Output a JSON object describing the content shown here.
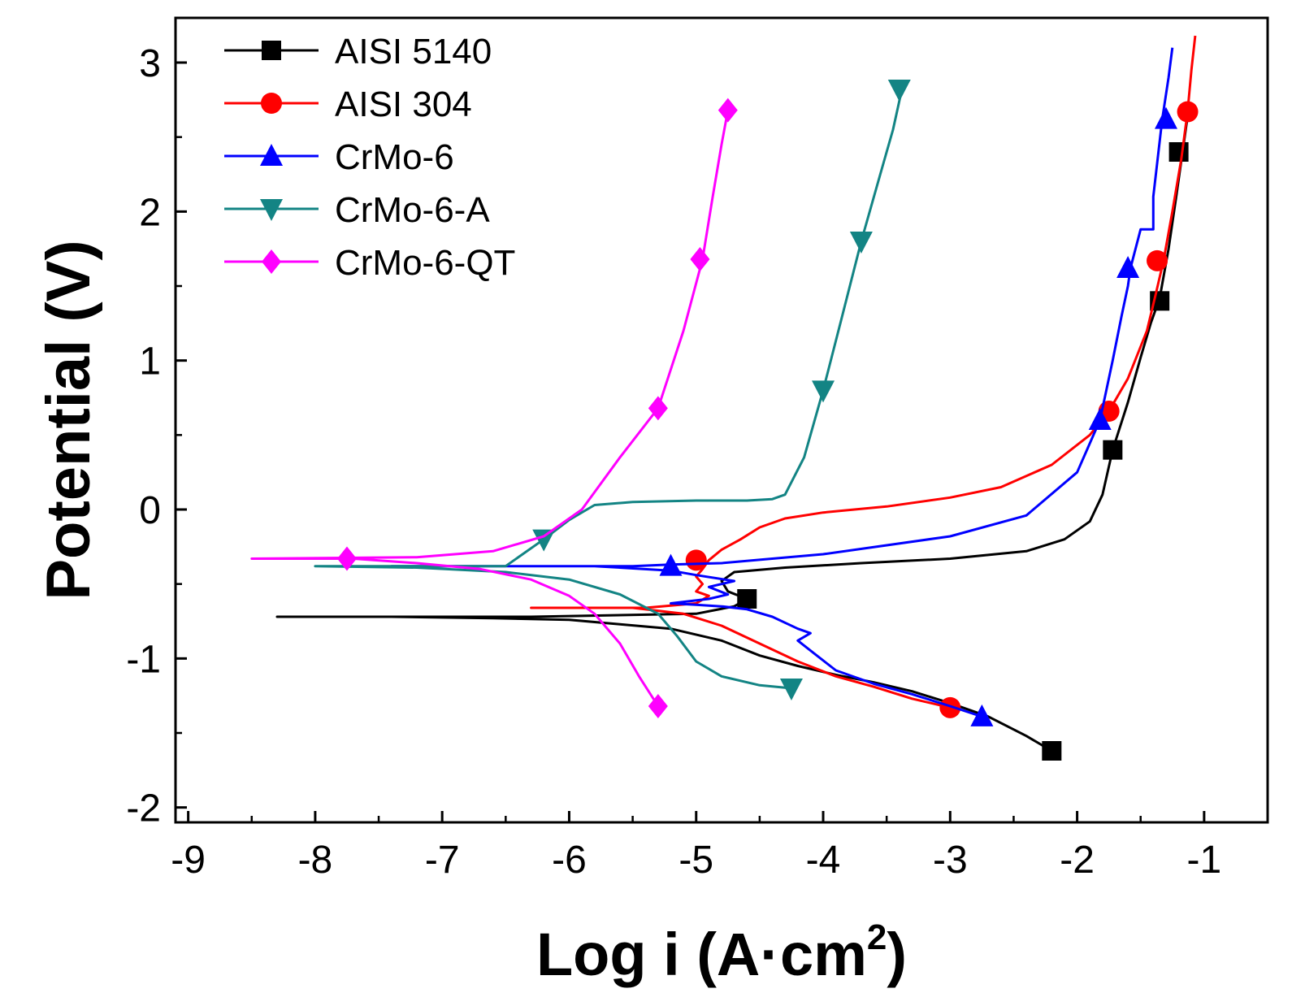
{
  "chart_data": {
    "type": "line",
    "title": "",
    "xlabel": "Log i (A·cm",
    "xlabel_sup": "2",
    "xlabel_close": ")",
    "ylabel": "Potential (V)",
    "xlim": [
      -9.1,
      -0.5
    ],
    "ylim": [
      -2.1,
      3.3
    ],
    "xticks": [
      -9,
      -8,
      -7,
      -6,
      -5,
      -4,
      -3,
      -2,
      -1
    ],
    "xtick_labels": [
      "-9",
      "-8",
      "-7",
      "-6",
      "-5",
      "-4",
      "-3",
      "-2",
      "-1"
    ],
    "yticks": [
      -2,
      -1,
      0,
      1,
      2,
      3
    ],
    "ytick_labels": [
      "-2",
      "-1",
      "0",
      "1",
      "2",
      "3"
    ],
    "legend_position": "top-left",
    "series": [
      {
        "name": "AISI 5140",
        "color": "#000000",
        "marker": "square",
        "x": [
          -2.2,
          -2.4,
          -2.7,
          -3.0,
          -3.3,
          -3.6,
          -3.9,
          -4.2,
          -4.5,
          -4.8,
          -5.2,
          -5.6,
          -6.0,
          -6.6,
          -7.4,
          -8.3,
          -6.3,
          -5.0,
          -4.7,
          -4.6,
          -4.75,
          -4.8,
          -4.7,
          -4.3,
          -3.7,
          -3.0,
          -2.4,
          -2.1,
          -1.9,
          -1.8,
          -1.72,
          -1.6,
          -1.5,
          -1.42,
          -1.35,
          -1.28,
          -1.22,
          -1.17,
          -1.12
        ],
        "y": [
          -1.62,
          -1.52,
          -1.39,
          -1.3,
          -1.22,
          -1.16,
          -1.11,
          -1.05,
          -0.98,
          -0.88,
          -0.8,
          -0.77,
          -0.74,
          -0.73,
          -0.72,
          -0.72,
          -0.72,
          -0.7,
          -0.65,
          -0.6,
          -0.55,
          -0.48,
          -0.42,
          -0.39,
          -0.36,
          -0.33,
          -0.28,
          -0.2,
          -0.08,
          0.1,
          0.4,
          0.72,
          1.02,
          1.25,
          1.42,
          1.75,
          2.1,
          2.4,
          2.7
        ],
        "marker_x": [
          -2.2,
          -4.6,
          -1.72,
          -1.35,
          -1.2
        ],
        "marker_y": [
          -1.62,
          -0.6,
          0.4,
          1.4,
          2.4
        ]
      },
      {
        "name": "AISI 304",
        "color": "#ff0000",
        "marker": "circle",
        "x": [
          -3.0,
          -3.3,
          -3.6,
          -3.9,
          -4.2,
          -4.5,
          -4.8,
          -5.1,
          -5.5,
          -6.0,
          -6.3,
          -5.4,
          -5.0,
          -4.9,
          -5.0,
          -4.95,
          -5.0,
          -4.95,
          -4.9,
          -4.8,
          -4.65,
          -4.5,
          -4.3,
          -4.0,
          -3.5,
          -3.0,
          -2.6,
          -2.2,
          -1.9,
          -1.75,
          -1.6,
          -1.45,
          -1.38,
          -1.32,
          -1.25,
          -1.18,
          -1.13,
          -1.1,
          -1.07
        ],
        "y": [
          -1.33,
          -1.27,
          -1.19,
          -1.12,
          -1.02,
          -0.9,
          -0.78,
          -0.7,
          -0.66,
          -0.66,
          -0.66,
          -0.66,
          -0.63,
          -0.58,
          -0.55,
          -0.5,
          -0.45,
          -0.4,
          -0.34,
          -0.27,
          -0.2,
          -0.12,
          -0.06,
          -0.02,
          0.02,
          0.08,
          0.15,
          0.3,
          0.5,
          0.66,
          0.88,
          1.2,
          1.45,
          1.67,
          2.0,
          2.35,
          2.67,
          2.95,
          3.18
        ],
        "marker_x": [
          -3.0,
          -5.0,
          -1.75,
          -1.37,
          -1.13
        ],
        "marker_y": [
          -1.33,
          -0.34,
          0.66,
          1.67,
          2.67
        ]
      },
      {
        "name": "CrMo-6",
        "color": "#0000ff",
        "marker": "triangle-up",
        "x": [
          -2.75,
          -3.0,
          -3.3,
          -3.6,
          -3.9,
          -4.05,
          -4.2,
          -4.1,
          -4.2,
          -4.4,
          -4.6,
          -4.8,
          -5.0,
          -5.2,
          -4.9,
          -4.75,
          -4.9,
          -4.7,
          -5.0,
          -5.2,
          -5.8,
          -6.6,
          -7.4,
          -5.5,
          -5.2,
          -4.8,
          -4.0,
          -3.0,
          -2.4,
          -2.0,
          -1.82,
          -1.72,
          -1.65,
          -1.6,
          -1.58,
          -1.5,
          -1.4,
          -1.4,
          -1.33,
          -1.28,
          -1.25
        ],
        "y": [
          -1.39,
          -1.32,
          -1.24,
          -1.17,
          -1.08,
          -0.98,
          -0.88,
          -0.83,
          -0.8,
          -0.72,
          -0.67,
          -0.65,
          -0.64,
          -0.63,
          -0.6,
          -0.57,
          -0.52,
          -0.48,
          -0.44,
          -0.41,
          -0.38,
          -0.38,
          -0.38,
          -0.38,
          -0.37,
          -0.36,
          -0.3,
          -0.18,
          -0.04,
          0.25,
          0.6,
          1.0,
          1.3,
          1.5,
          1.62,
          1.88,
          1.88,
          2.1,
          2.62,
          2.9,
          3.1
        ],
        "marker_x": [
          -2.75,
          -5.2,
          -1.82,
          -1.6,
          -1.3
        ],
        "marker_y": [
          -1.39,
          -0.38,
          0.6,
          1.62,
          2.62
        ]
      },
      {
        "name": "CrMo-6-A",
        "color": "#138484",
        "marker": "triangle-down",
        "x": [
          -4.25,
          -4.5,
          -4.8,
          -5.0,
          -5.15,
          -5.3,
          -5.6,
          -6.0,
          -6.5,
          -7.2,
          -8.0,
          -6.5,
          -6.2,
          -6.0,
          -5.8,
          -5.5,
          -5.0,
          -4.6,
          -4.4,
          -4.3,
          -4.15,
          -4.0,
          -3.85,
          -3.7,
          -3.55,
          -3.45,
          -3.38
        ],
        "y": [
          -1.2,
          -1.18,
          -1.12,
          -1.02,
          -0.85,
          -0.7,
          -0.57,
          -0.47,
          -0.42,
          -0.39,
          -0.38,
          -0.38,
          -0.2,
          -0.07,
          0.03,
          0.05,
          0.06,
          0.06,
          0.07,
          0.1,
          0.35,
          0.8,
          1.3,
          1.8,
          2.25,
          2.55,
          2.82
        ],
        "marker_x": [
          -4.25,
          -6.2,
          -4.0,
          -3.7,
          -3.4
        ],
        "marker_y": [
          -1.2,
          -0.2,
          0.8,
          1.8,
          2.82
        ]
      },
      {
        "name": "CrMo-6-QT",
        "color": "#ff00ff",
        "marker": "diamond",
        "x": [
          -5.3,
          -5.45,
          -5.6,
          -5.8,
          -6.0,
          -6.3,
          -6.7,
          -7.2,
          -7.7,
          -8.5,
          -7.2,
          -6.6,
          -6.2,
          -5.9,
          -5.6,
          -5.3,
          -5.1,
          -4.95,
          -4.87,
          -4.8,
          -4.75
        ],
        "y": [
          -1.32,
          -1.12,
          -0.9,
          -0.7,
          -0.58,
          -0.47,
          -0.4,
          -0.36,
          -0.33,
          -0.33,
          -0.32,
          -0.28,
          -0.18,
          0.0,
          0.35,
          0.68,
          1.2,
          1.68,
          2.1,
          2.45,
          2.68
        ],
        "marker_x": [
          -5.3,
          -7.75,
          -5.3,
          -4.97,
          -4.75
        ],
        "marker_y": [
          -1.32,
          -0.33,
          0.68,
          1.68,
          2.68
        ]
      }
    ]
  }
}
